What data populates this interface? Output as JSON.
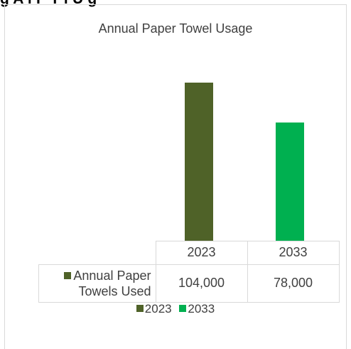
{
  "header_text": "g   A    l P     T    l U   g",
  "chart_data": {
    "type": "bar",
    "title": "Annual Paper Towel Usage",
    "categories": [
      "2023",
      "2033"
    ],
    "series": [
      {
        "name": "Annual Paper Towels Used",
        "values": [
          104000,
          78000
        ]
      }
    ],
    "bar_colors": [
      "#4f6228",
      "#00b050"
    ],
    "data_table": {
      "headers": [
        "2023",
        "2033"
      ],
      "row_label": "Annual Paper Towels Used",
      "row_values": [
        "104,000",
        "78,000"
      ]
    },
    "legend": [
      "2023",
      "2033"
    ],
    "legend_position": "bottom",
    "ylim": [
      0,
      120000
    ],
    "grid": false
  }
}
